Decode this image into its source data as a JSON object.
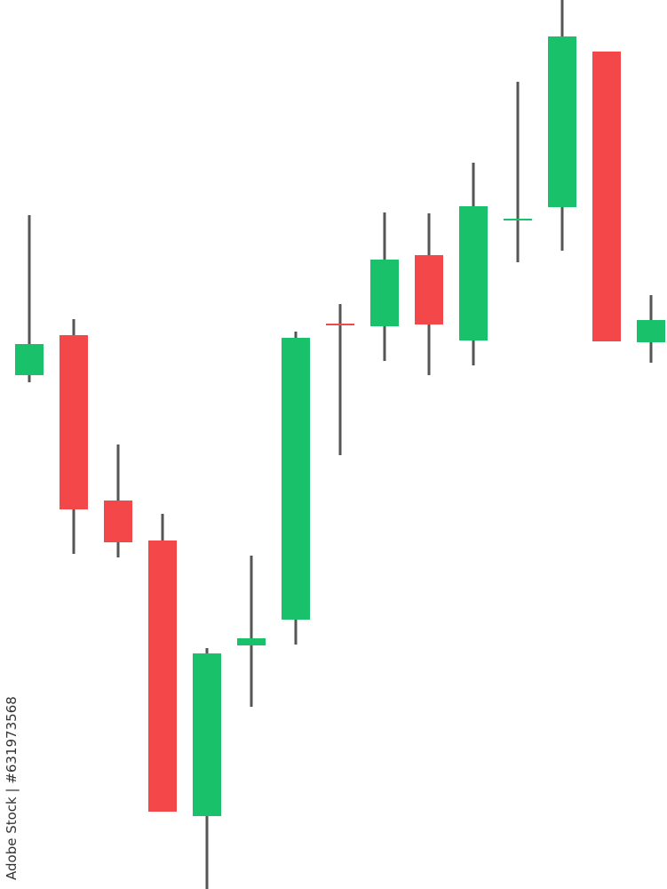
{
  "chart_data": {
    "type": "candlestick",
    "title": "",
    "xlabel": "",
    "ylabel": "",
    "ylim": [
      0,
      100
    ],
    "grid": false,
    "colors": {
      "up": "#19c16b",
      "down": "#f4474a",
      "wick": "#555555"
    },
    "candles": [
      {
        "open": 57.8,
        "close": 61.3,
        "high": 75.8,
        "low": 57.0
      },
      {
        "open": 62.3,
        "close": 42.7,
        "high": 64.1,
        "low": 37.7
      },
      {
        "open": 43.7,
        "close": 39.0,
        "high": 50.0,
        "low": 37.3
      },
      {
        "open": 39.2,
        "close": 8.7,
        "high": 42.2,
        "low": 8.7
      },
      {
        "open": 8.2,
        "close": 26.5,
        "high": 27.1,
        "low": 0.0
      },
      {
        "open": 27.4,
        "close": 28.2,
        "high": 37.5,
        "low": 20.5
      },
      {
        "open": 30.3,
        "close": 62.0,
        "high": 62.7,
        "low": 27.5
      },
      {
        "open": 63.6,
        "close": 63.4,
        "high": 65.8,
        "low": 48.8
      },
      {
        "open": 63.3,
        "close": 70.8,
        "high": 76.1,
        "low": 59.4
      },
      {
        "open": 71.3,
        "close": 63.5,
        "high": 76.0,
        "low": 57.8
      },
      {
        "open": 61.7,
        "close": 76.8,
        "high": 81.7,
        "low": 58.9
      },
      {
        "open": 75.2,
        "close": 75.4,
        "high": 90.8,
        "low": 70.5
      },
      {
        "open": 76.7,
        "close": 95.9,
        "high": 100.0,
        "low": 71.8
      },
      {
        "open": 94.2,
        "close": 61.6,
        "high": 94.2,
        "low": 61.6
      },
      {
        "open": 61.5,
        "close": 64.0,
        "high": 66.8,
        "low": 59.2
      }
    ]
  },
  "watermark": "Adobe Stock | #631973568"
}
